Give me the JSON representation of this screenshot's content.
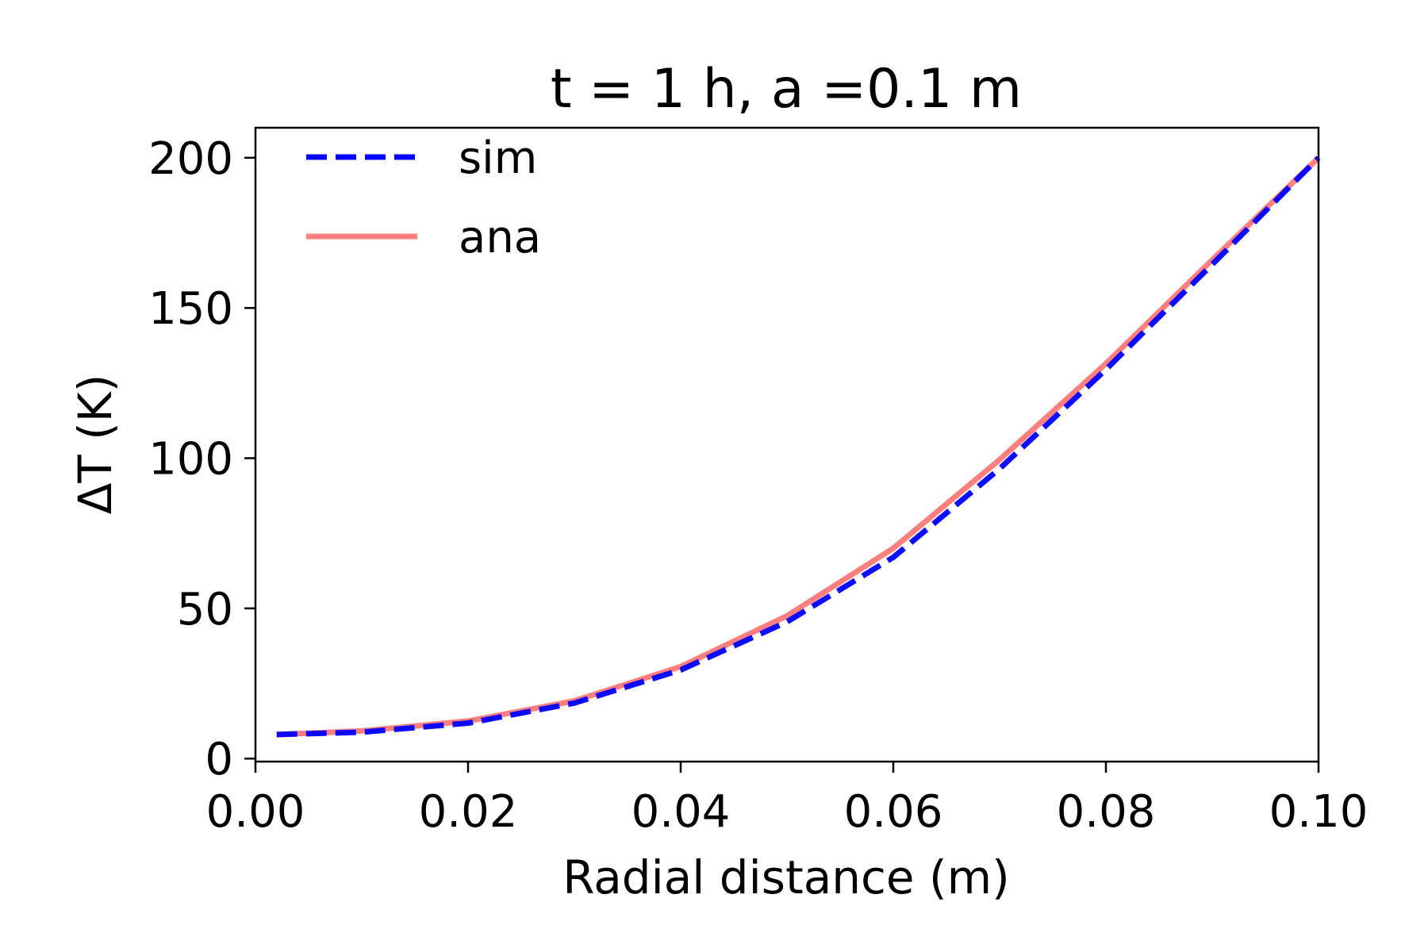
{
  "chart_data": {
    "type": "line",
    "title": "t = 1 h, a =0.1 m",
    "xlabel": "Radial distance (m)",
    "ylabel": "ΔT (K)",
    "xlim": [
      0.0,
      0.1
    ],
    "ylim": [
      -1,
      210
    ],
    "x_ticks": [
      "0.00",
      "0.02",
      "0.04",
      "0.06",
      "0.08",
      "0.10"
    ],
    "y_ticks": [
      "0",
      "50",
      "100",
      "150",
      "200"
    ],
    "grid": false,
    "legend": {
      "placement": "top-left"
    },
    "series": [
      {
        "name": "sim",
        "color": "#0000ff",
        "style": "dashed",
        "x": [
          0.002,
          0.01,
          0.02,
          0.03,
          0.04,
          0.05,
          0.06,
          0.07,
          0.08,
          0.09,
          0.1
        ],
        "y": [
          8,
          8.8,
          11.8,
          18.5,
          29.5,
          45.5,
          67,
          96.5,
          129.5,
          164.5,
          200
        ]
      },
      {
        "name": "ana",
        "color": "#ff7f7f",
        "style": "solid",
        "x": [
          0.002,
          0.01,
          0.02,
          0.03,
          0.04,
          0.05,
          0.06,
          0.07,
          0.08,
          0.09,
          0.1
        ],
        "y": [
          8,
          9.2,
          12.5,
          19.2,
          30.6,
          47.5,
          70,
          99.5,
          131.5,
          166,
          200
        ]
      }
    ]
  }
}
